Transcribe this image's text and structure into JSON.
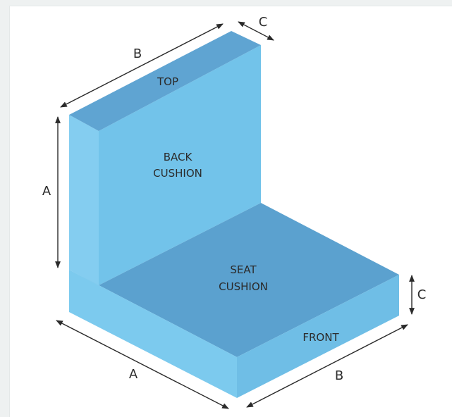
{
  "labels": {
    "top": "TOP",
    "back_line1": "BACK",
    "back_line2": "CUSHION",
    "seat_line1": "SEAT",
    "seat_line2": "CUSHION",
    "front": "FRONT"
  },
  "dimensions": {
    "back_width": "B",
    "back_depth": "C",
    "back_height": "A",
    "seat_height": "C",
    "seat_depth": "A",
    "seat_width": "B"
  },
  "colors": {
    "top_face": "#5fa4d2",
    "back_left_edge": "#84cdf0",
    "back_front_face": "#72c3ea",
    "back_right_face": "#77c7ed",
    "seat_top": "#5ba1cf",
    "seat_left_face": "#7ccaee",
    "seat_front_face": "#6fbee6"
  }
}
